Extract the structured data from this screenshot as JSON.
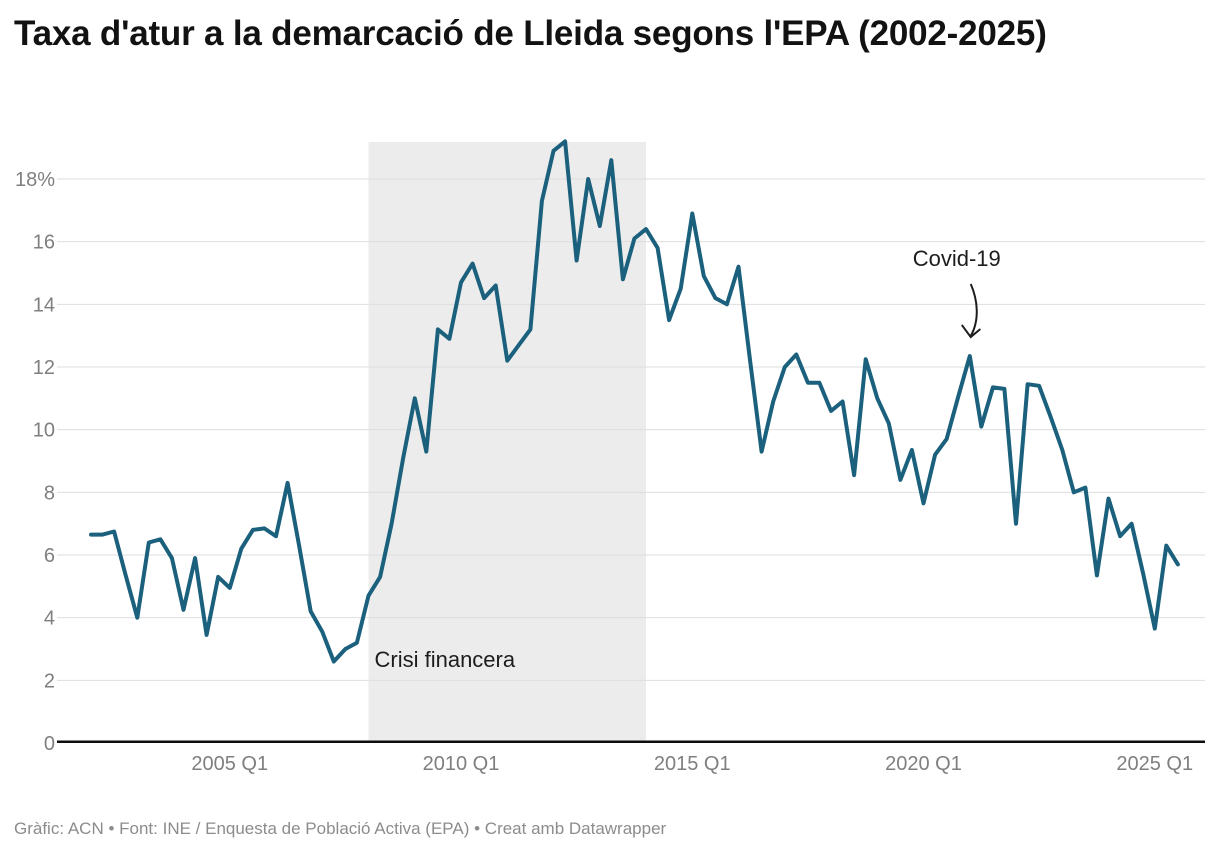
{
  "page": {
    "title": "Taxa d'atur a la demarcació de Lleida segons l'EPA (2002-2025)",
    "footer": "Gràfic: ACN • Font: INE / Enquesta de Població Activa (EPA) • Creat amb Datawrapper"
  },
  "chart_data": {
    "type": "line",
    "title": "Taxa d'atur a la demarcació de Lleida segons l'EPA (2002-2025)",
    "series_name": "Taxa d'atur",
    "unit": "%",
    "grid": true,
    "ylim": [
      0,
      19.5
    ],
    "categories": [
      "2002 Q1",
      "2002 Q2",
      "2002 Q3",
      "2002 Q4",
      "2003 Q1",
      "2003 Q2",
      "2003 Q3",
      "2003 Q4",
      "2004 Q1",
      "2004 Q2",
      "2004 Q3",
      "2004 Q4",
      "2005 Q1",
      "2005 Q2",
      "2005 Q3",
      "2005 Q4",
      "2006 Q1",
      "2006 Q2",
      "2006 Q3",
      "2006 Q4",
      "2007 Q1",
      "2007 Q2",
      "2007 Q3",
      "2007 Q4",
      "2008 Q1",
      "2008 Q2",
      "2008 Q3",
      "2008 Q4",
      "2009 Q1",
      "2009 Q2",
      "2009 Q3",
      "2009 Q4",
      "2010 Q1",
      "2010 Q2",
      "2010 Q3",
      "2010 Q4",
      "2011 Q1",
      "2011 Q2",
      "2011 Q3",
      "2011 Q4",
      "2012 Q1",
      "2012 Q2",
      "2012 Q3",
      "2012 Q4",
      "2013 Q1",
      "2013 Q2",
      "2013 Q3",
      "2013 Q4",
      "2014 Q1",
      "2014 Q2",
      "2014 Q3",
      "2014 Q4",
      "2015 Q1",
      "2015 Q2",
      "2015 Q3",
      "2015 Q4",
      "2016 Q1",
      "2016 Q2",
      "2016 Q3",
      "2016 Q4",
      "2017 Q1",
      "2017 Q2",
      "2017 Q3",
      "2017 Q4",
      "2018 Q1",
      "2018 Q2",
      "2018 Q3",
      "2018 Q4",
      "2019 Q1",
      "2019 Q2",
      "2019 Q3",
      "2019 Q4",
      "2020 Q1",
      "2020 Q2",
      "2020 Q3",
      "2020 Q4",
      "2021 Q1",
      "2021 Q2",
      "2021 Q3",
      "2021 Q4",
      "2022 Q1",
      "2022 Q2",
      "2022 Q3",
      "2022 Q4",
      "2023 Q1",
      "2023 Q2",
      "2023 Q3",
      "2023 Q4",
      "2024 Q1",
      "2024 Q2",
      "2024 Q3",
      "2024 Q4",
      "2025 Q1",
      "2025 Q2",
      "2025 Q3"
    ],
    "values": [
      6.65,
      6.65,
      6.75,
      5.35,
      4.0,
      6.4,
      6.5,
      5.9,
      4.25,
      5.9,
      3.45,
      5.3,
      4.95,
      6.2,
      6.8,
      6.85,
      6.6,
      8.3,
      6.3,
      4.2,
      3.55,
      2.6,
      3.0,
      3.2,
      4.7,
      5.3,
      7.0,
      9.1,
      11.0,
      9.3,
      13.2,
      12.9,
      14.7,
      15.3,
      14.2,
      14.6,
      12.2,
      12.7,
      13.2,
      17.3,
      18.9,
      19.2,
      15.4,
      18.0,
      16.5,
      18.6,
      14.8,
      16.1,
      16.4,
      15.8,
      13.5,
      14.5,
      16.9,
      14.9,
      14.2,
      14.0,
      15.2,
      12.2,
      9.3,
      10.9,
      12.0,
      12.4,
      11.5,
      11.5,
      10.6,
      10.9,
      8.55,
      12.25,
      11.0,
      10.2,
      8.4,
      9.35,
      7.65,
      9.2,
      9.7,
      11.05,
      12.35,
      10.1,
      11.35,
      11.3,
      7.0,
      11.45,
      11.4,
      10.4,
      9.35,
      8.0,
      8.15,
      5.35,
      7.8,
      6.6,
      7.0,
      5.4,
      3.65,
      6.3,
      5.7
    ],
    "yticks": [
      {
        "value": 0,
        "label": "0"
      },
      {
        "value": 2,
        "label": "2"
      },
      {
        "value": 4,
        "label": "4"
      },
      {
        "value": 6,
        "label": "6"
      },
      {
        "value": 8,
        "label": "8"
      },
      {
        "value": 10,
        "label": "10"
      },
      {
        "value": 12,
        "label": "12"
      },
      {
        "value": 14,
        "label": "14"
      },
      {
        "value": 16,
        "label": "16"
      },
      {
        "value": 18,
        "label": "18%"
      }
    ],
    "xticks": [
      {
        "index": 12,
        "label": "2005 Q1"
      },
      {
        "index": 32,
        "label": "2010 Q1"
      },
      {
        "index": 52,
        "label": "2015 Q1"
      },
      {
        "index": 72,
        "label": "2020 Q1"
      },
      {
        "index": 92,
        "label": "2025 Q1"
      }
    ],
    "annotations": {
      "range": {
        "label": "Crisi financera",
        "start": "2008 Q1",
        "end": "2014 Q1",
        "start_index": 24,
        "end_index": 48
      },
      "point": {
        "label": "Covid-19",
        "category": "2021 Q1",
        "index": 76,
        "value": 12.35
      }
    },
    "colors": {
      "line": "#1b607c",
      "range_fill": "#ececec",
      "grid": "#dedede",
      "axis": "#0d0d0d",
      "tick_text": "#7f7f7f",
      "annotation_text": "#1d1d1d"
    }
  }
}
